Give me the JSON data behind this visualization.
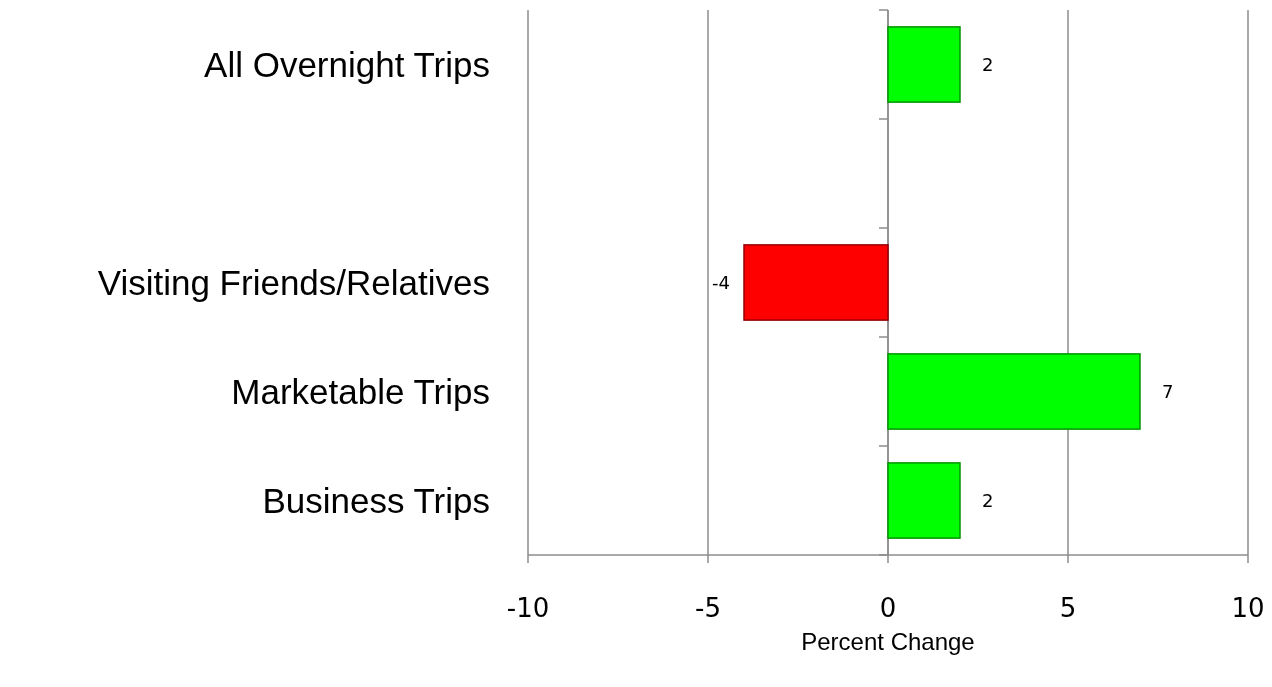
{
  "chart_data": {
    "type": "bar",
    "orientation": "horizontal",
    "xlabel": "Percent Change",
    "categories": [
      "All Overnight Trips",
      null,
      "Visiting Friends/Relatives",
      "Marketable Trips",
      "Business Trips"
    ],
    "values": [
      2,
      null,
      -4,
      7,
      2
    ],
    "colors": [
      "#00ff00",
      null,
      "#ff0000",
      "#00ff00",
      "#00ff00"
    ],
    "xlim": [
      -10,
      10
    ],
    "xticks": [
      -10,
      -5,
      0,
      5,
      10
    ],
    "grid": "x",
    "data_labels": true
  }
}
